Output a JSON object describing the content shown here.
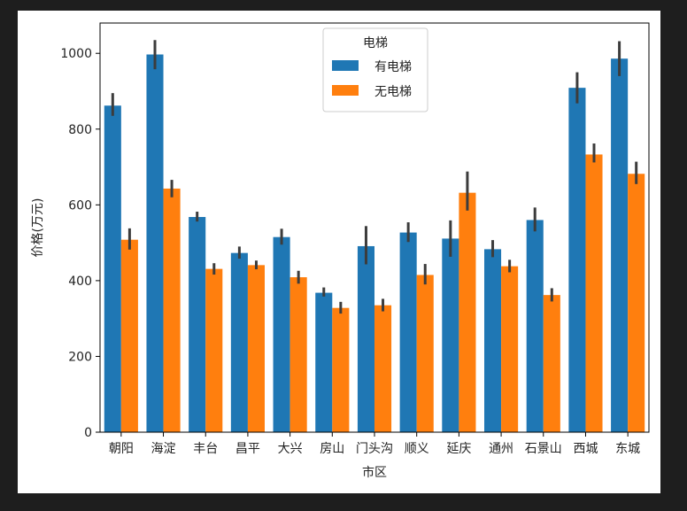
{
  "chart_data": {
    "type": "bar",
    "xlabel": "市区",
    "ylabel": "价格(万元)",
    "ylim": [
      0,
      1080
    ],
    "yticks": [
      0,
      200,
      400,
      600,
      800,
      1000
    ],
    "categories": [
      "朝阳",
      "海淀",
      "丰台",
      "昌平",
      "大兴",
      "房山",
      "门头沟",
      "顺义",
      "延庆",
      "通州",
      "石景山",
      "西城",
      "东城"
    ],
    "legend": {
      "title": "电梯",
      "placement": "top-center"
    },
    "series": [
      {
        "name": "有电梯",
        "color": "#1f77b4",
        "values": [
          862,
          997,
          568,
          473,
          515,
          368,
          491,
          527,
          511,
          483,
          560,
          909,
          986
        ],
        "ci_low": [
          835,
          958,
          556,
          458,
          495,
          358,
          443,
          502,
          463,
          462,
          530,
          868,
          940
        ],
        "ci_high": [
          895,
          1035,
          582,
          490,
          537,
          382,
          544,
          554,
          559,
          507,
          593,
          950,
          1032
        ]
      },
      {
        "name": "无电梯",
        "color": "#ff7f0e",
        "values": [
          508,
          643,
          431,
          441,
          409,
          328,
          335,
          415,
          632,
          438,
          362,
          733,
          682
        ],
        "ci_low": [
          482,
          620,
          416,
          430,
          392,
          313,
          319,
          390,
          585,
          422,
          345,
          712,
          655
        ],
        "ci_high": [
          538,
          666,
          446,
          453,
          426,
          344,
          352,
          444,
          688,
          455,
          380,
          762,
          714
        ]
      }
    ]
  }
}
